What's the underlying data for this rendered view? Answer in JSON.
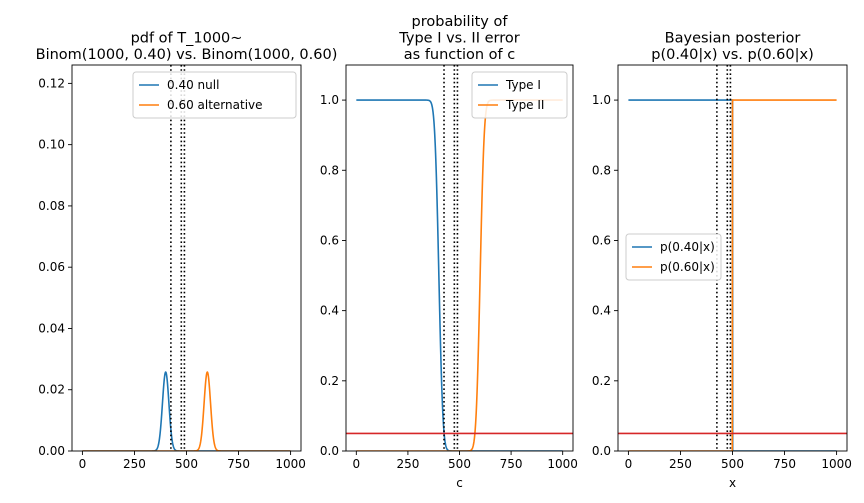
{
  "chart_data": [
    {
      "type": "line",
      "title": [
        "pdf of T_1000~",
        "Binom(1000, 0.40) vs. Binom(1000, 0.60)"
      ],
      "xlabel": "",
      "ylabel": "",
      "xlim": [
        -50,
        1050
      ],
      "ylim": [
        0,
        0.126
      ],
      "xticks": [
        0,
        250,
        500,
        750,
        1000
      ],
      "yticks": [
        0.0,
        0.02,
        0.04,
        0.06,
        0.08,
        0.1,
        0.12
      ],
      "ytick_labels": [
        "0.00",
        "0.02",
        "0.04",
        "0.06",
        "0.08",
        "0.10",
        "0.12"
      ],
      "legend": "top-right",
      "series": [
        {
          "name": "0.40 null",
          "color": "#1f77b4",
          "kind": "normal_pdf",
          "mean": 400,
          "sd": 15.49
        },
        {
          "name": "0.60 alternative",
          "color": "#ff7f0e",
          "kind": "normal_pdf",
          "mean": 600,
          "sd": 15.49
        }
      ],
      "vlines": [
        425,
        475,
        490
      ],
      "hline": null
    },
    {
      "type": "line",
      "title": [
        "probability of",
        "Type I vs. II error",
        "as function of c"
      ],
      "xlabel": "c",
      "ylabel": "",
      "xlim": [
        -50,
        1050
      ],
      "ylim": [
        0,
        1.1
      ],
      "xticks": [
        0,
        250,
        500,
        750,
        1000
      ],
      "yticks": [
        0.0,
        0.2,
        0.4,
        0.6,
        0.8,
        1.0
      ],
      "ytick_labels": [
        "0.0",
        "0.2",
        "0.4",
        "0.6",
        "0.8",
        "1.0"
      ],
      "legend": "top-right",
      "series": [
        {
          "name": "Type I",
          "color": "#1f77b4",
          "kind": "survival",
          "mean": 400,
          "sd": 15.49
        },
        {
          "name": "Type II",
          "color": "#ff7f0e",
          "kind": "cdf",
          "mean": 600,
          "sd": 15.49
        }
      ],
      "vlines": [
        425,
        475,
        490
      ],
      "hline": {
        "y": 0.05,
        "color": "#d62728"
      }
    },
    {
      "type": "line",
      "title": [
        "Bayesian posterior",
        "p(0.40|x) vs. p(0.60|x)"
      ],
      "xlabel": "x",
      "ylabel": "",
      "xlim": [
        -50,
        1050
      ],
      "ylim": [
        0,
        1.1
      ],
      "xticks": [
        0,
        250,
        500,
        750,
        1000
      ],
      "yticks": [
        0.0,
        0.2,
        0.4,
        0.6,
        0.8,
        1.0
      ],
      "ytick_labels": [
        "0.0",
        "0.2",
        "0.4",
        "0.6",
        "0.8",
        "1.0"
      ],
      "legend": "center-left",
      "series": [
        {
          "name": "p(0.40|x)",
          "color": "#1f77b4",
          "kind": "step_down",
          "at": 500
        },
        {
          "name": "p(0.60|x)",
          "color": "#ff7f0e",
          "kind": "step_up",
          "at": 500
        }
      ],
      "vlines": [
        425,
        475,
        490
      ],
      "hline": {
        "y": 0.05,
        "color": "#d62728"
      }
    }
  ]
}
